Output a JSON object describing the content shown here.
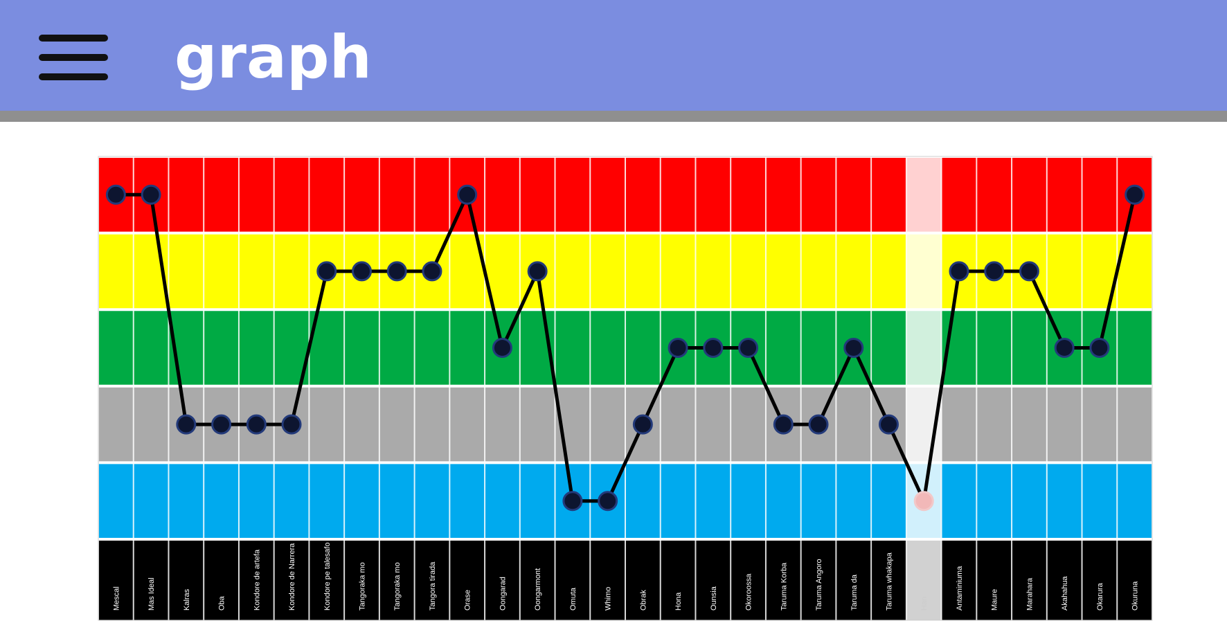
{
  "appbar": {
    "title": "graph",
    "menu_icon": "hamburger-menu-icon",
    "background": "#7b8de0"
  },
  "chart_data": {
    "type": "line",
    "title": "",
    "xlabel": "",
    "ylabel": "",
    "y_levels": 5,
    "ylim": [
      1,
      5
    ],
    "band_colors": [
      "#ff0000",
      "#ffff00",
      "#00aa44",
      "#aaaaaa",
      "#00aaee"
    ],
    "label_row_color": "#000000",
    "line_color": "#000000",
    "marker_color": "#0d1530",
    "x": [
      "Mescal",
      "Mas Ideal",
      "Kalras",
      "Oba",
      "Kondore de artefa",
      "Kondore de Narrera",
      "Kondore pe talesafo",
      "Tangoraka mo",
      "Tangoraka mo",
      "Tangora tirada",
      "Orase",
      "Oongarad",
      "Oongarmont",
      "Omuta",
      "Whimo",
      "Obrak",
      "Hona",
      "Ounsia",
      "Okoroossa",
      "Taruma Korba",
      "Taruma Angoro",
      "Taruma da",
      "Taruma whakapa",
      "Han",
      "Antaminiuma",
      "Maure",
      "Marahara",
      "Akahahua",
      "Okarura",
      "Okuruna"
    ],
    "values": [
      5,
      5,
      2,
      2,
      2,
      2,
      4,
      4,
      4,
      4,
      5,
      3,
      4,
      1,
      1,
      2,
      3,
      3,
      3,
      2,
      2,
      3,
      2,
      1,
      4,
      4,
      4,
      3,
      3,
      5
    ],
    "highlighted_column": 23,
    "grid": true
  }
}
